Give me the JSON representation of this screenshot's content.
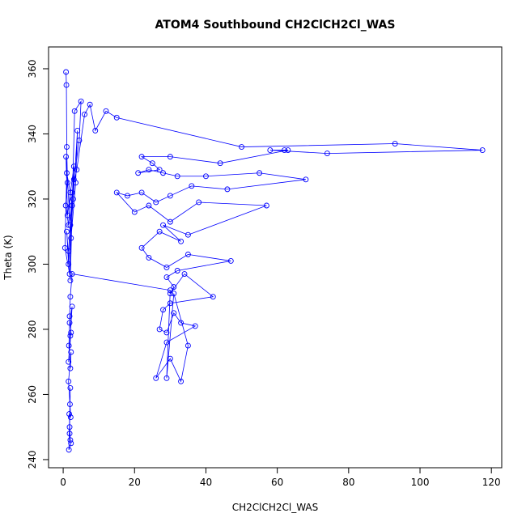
{
  "chart_data": {
    "type": "line",
    "title": "ATOM4 Southbound CH2ClCH2Cl_WAS",
    "x_label": "CH2ClCH2Cl_WAS",
    "y_label": "Theta (K)",
    "x": [
      0.8,
      0.9,
      1.0,
      1.2,
      0.7,
      1.5,
      2.0,
      1.0,
      0.5,
      1.8,
      2.5,
      3.0,
      1.2,
      0.8,
      2.2,
      3.5,
      4.0,
      2.8,
      1.5,
      1.0,
      2.0,
      3.2,
      5.0,
      4.5,
      3.0,
      2.0,
      1.5,
      2.5,
      3.8,
      6.0,
      7.5,
      9.0,
      12,
      15,
      50,
      93,
      117.5,
      74,
      58,
      62,
      63,
      44,
      30,
      22,
      25,
      27,
      21,
      24,
      28,
      32,
      40,
      55,
      68,
      46,
      36,
      30,
      26,
      22,
      18,
      15,
      20,
      24,
      30,
      38,
      57,
      35,
      28,
      33,
      27,
      22,
      24,
      29,
      35,
      47,
      32,
      29,
      31,
      30,
      34,
      42,
      30,
      28,
      27,
      29,
      31,
      33,
      37,
      29,
      26,
      30,
      33,
      35,
      31,
      29,
      30,
      2.5,
      2.0,
      1.8,
      2.2,
      1.5,
      2.0,
      2.5,
      1.8,
      1.6,
      2.0,
      2.2,
      1.5,
      1.9,
      2.1,
      1.7,
      2.0,
      1.8,
      2.2,
      1.6,
      2.0,
      1.8
    ],
    "series": [
      {
        "name": "Theta",
        "color": "#0000ff",
        "values": [
          359,
          355,
          336,
          325,
          318,
          312,
          322,
          328,
          305,
          297,
          318,
          330,
          315,
          333,
          308,
          325,
          341,
          320,
          300,
          310,
          295,
          347,
          350,
          338,
          326,
          312,
          304,
          322,
          329,
          346,
          349,
          341,
          347,
          345,
          336,
          337,
          335,
          334,
          335,
          335,
          335,
          331,
          333,
          333,
          331,
          329,
          328,
          329,
          328,
          327,
          327,
          328,
          326,
          323,
          324,
          321,
          319,
          322,
          321,
          322,
          316,
          318,
          313,
          319,
          318,
          309,
          312,
          307,
          310,
          305,
          302,
          299,
          303,
          301,
          298,
          296,
          293,
          291,
          297,
          290,
          288,
          286,
          280,
          279,
          285,
          282,
          281,
          276,
          265,
          271,
          264,
          275,
          291,
          265,
          292,
          297,
          290,
          284,
          279,
          270,
          278,
          287,
          282,
          275,
          268,
          273,
          264,
          257,
          253,
          254,
          246,
          248,
          245,
          243,
          262,
          250
        ]
      }
    ],
    "xlim": [
      -4.1,
      122.9
    ],
    "ylim": [
      237.5,
      366.7
    ],
    "xticks": [
      0,
      20,
      40,
      60,
      80,
      100,
      120
    ],
    "yticks": [
      240,
      260,
      280,
      300,
      320,
      340,
      360
    ],
    "markers": true
  }
}
